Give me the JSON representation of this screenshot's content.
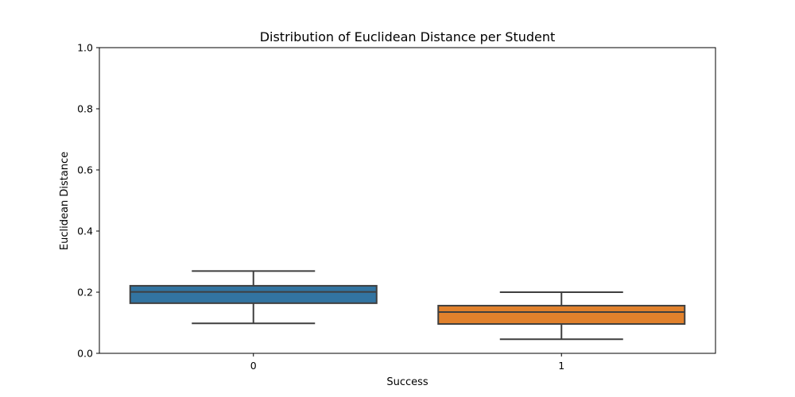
{
  "chart_data": {
    "type": "box",
    "title": "Distribution of Euclidean Distance per Student",
    "xlabel": "Success",
    "ylabel": "Euclidean Distance",
    "ylim": [
      0.0,
      1.0
    ],
    "yticks": [
      "0.0",
      "0.2",
      "0.4",
      "0.6",
      "0.8",
      "1.0"
    ],
    "grid": false,
    "categories": [
      "0",
      "1"
    ],
    "boxes": [
      {
        "category": "0",
        "whisker_low": 0.098,
        "q1": 0.164,
        "median": 0.201,
        "q3": 0.221,
        "whisker_high": 0.269,
        "color": "#3274a1"
      },
      {
        "category": "1",
        "whisker_low": 0.046,
        "q1": 0.096,
        "median": 0.135,
        "q3": 0.156,
        "whisker_high": 0.2,
        "color": "#e1812c"
      }
    ]
  }
}
